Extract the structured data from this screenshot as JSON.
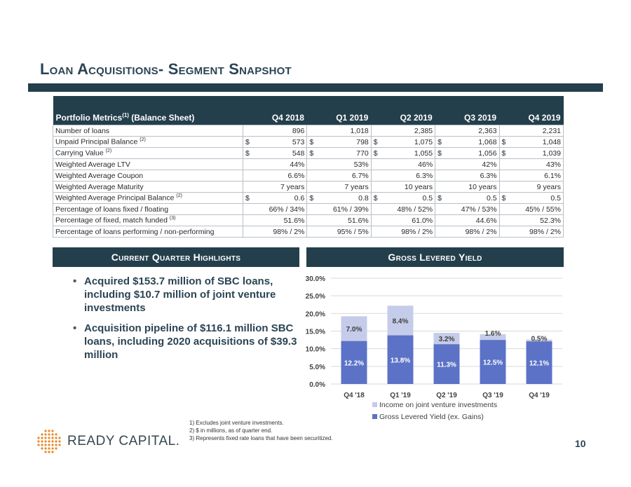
{
  "title": "Loan Acquisitions- Segment Snapshot",
  "table": {
    "header": {
      "label": "Portfolio Metrics",
      "label_sup": "(1)",
      "label_suffix": " (Balance Sheet)",
      "columns": [
        "Q4 2018",
        "Q1 2019",
        "Q2 2019",
        "Q3 2019",
        "Q4 2019"
      ]
    },
    "rows": [
      {
        "label": "Number of loans",
        "sup": "",
        "cur": false,
        "values": [
          "896",
          "1,018",
          "2,385",
          "2,363",
          "2,231"
        ]
      },
      {
        "label": "Unpaid Principal Balance",
        "sup": "(2)",
        "cur": true,
        "values": [
          "573",
          "798",
          "1,075",
          "1,068",
          "1,048"
        ]
      },
      {
        "label": "Carrying Value",
        "sup": "(2)",
        "cur": true,
        "values": [
          "548",
          "770",
          "1,055",
          "1,056",
          "1,039"
        ]
      },
      {
        "label": "Weighted Average LTV",
        "sup": "",
        "cur": false,
        "values": [
          "44%",
          "53%",
          "46%",
          "42%",
          "43%"
        ]
      },
      {
        "label": "Weighted Average Coupon",
        "sup": "",
        "cur": false,
        "values": [
          "6.6%",
          "6.7%",
          "6.3%",
          "6.3%",
          "6.1%"
        ]
      },
      {
        "label": "Weighted Average Maturity",
        "sup": "",
        "cur": false,
        "values": [
          "7 years",
          "7 years",
          "10 years",
          "10 years",
          "9 years"
        ]
      },
      {
        "label": "Weighted Average Principal Balance",
        "sup": "(2)",
        "cur": true,
        "values": [
          "0.6",
          "0.8",
          "0.5",
          "0.5",
          "0.5"
        ]
      },
      {
        "label": "Percentage of loans fixed / floating",
        "sup": "",
        "cur": false,
        "values": [
          "66% / 34%",
          "61% / 39%",
          "48% / 52%",
          "47% / 53%",
          "45% / 55%"
        ]
      },
      {
        "label": "Percentage of fixed, match funded",
        "sup": "(3)",
        "cur": false,
        "values": [
          "51.6%",
          "51.6%",
          "61.0%",
          "44.6%",
          "52.3%"
        ]
      },
      {
        "label": "Percentage of loans performing / non-performing",
        "sup": "",
        "cur": false,
        "values": [
          "98% / 2%",
          "95% / 5%",
          "98% / 2%",
          "98% / 2%",
          "98% / 2%"
        ]
      }
    ],
    "currency_symbol": "$"
  },
  "highlights": {
    "header": "Current Quarter Highlights",
    "bullets": [
      "Acquired $153.7 million of SBC loans, including $10.7 million of joint venture investments",
      "Acquisition pipeline of $116.1 million SBC loans, including 2020 acquisitions of $39.3 million"
    ]
  },
  "chart_header": "Gross Levered Yield",
  "chart_data": {
    "type": "bar",
    "stacked": true,
    "categories": [
      "Q4 '18",
      "Q1 '19",
      "Q2 '19",
      "Q3 '19",
      "Q4 '19"
    ],
    "series": [
      {
        "name": "Gross Levered Yield (ex. Gains)",
        "values": [
          12.2,
          13.8,
          11.3,
          12.5,
          12.1
        ],
        "labels": [
          "12.2%",
          "13.8%",
          "11.3%",
          "12.5%",
          "12.1%"
        ],
        "color": "#5b72c7"
      },
      {
        "name": "Income on joint venture investments",
        "values": [
          7.0,
          8.4,
          3.2,
          1.6,
          0.5
        ],
        "labels": [
          "7.0%",
          "8.4%",
          "3.2%",
          "1.6%",
          "0.5%"
        ],
        "color": "#c5cce9"
      }
    ],
    "ylim": [
      0,
      30
    ],
    "yticks": [
      "0.0%",
      "5.0%",
      "10.0%",
      "15.0%",
      "20.0%",
      "25.0%",
      "30.0%"
    ],
    "grid": true,
    "legend_position": "bottom"
  },
  "footnotes": [
    "1)   Excludes joint venture investments.",
    "2)   $ in millions, as of quarter end.",
    "3)   Represents fixed rate loans that have been securitized."
  ],
  "logo_text": "READY CAPITAL.",
  "page_number": "10",
  "colors": {
    "navy": "#243f4c",
    "accent": "#e8892a"
  }
}
